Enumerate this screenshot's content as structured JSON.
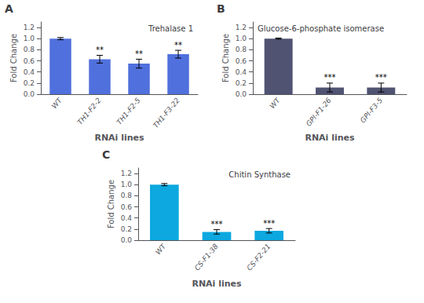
{
  "chart_data": [
    {
      "type": "bar",
      "panel_label": "A",
      "title": "Trehalase 1",
      "categories": [
        "WT",
        "TH1-F2-2",
        "TH1-F2-5",
        "TH1-F3-22"
      ],
      "values": [
        1.0,
        0.63,
        0.55,
        0.72
      ],
      "errors": [
        0.02,
        0.07,
        0.08,
        0.07
      ],
      "annotations": [
        null,
        "**",
        "**",
        "**"
      ],
      "ylabel": "Fold Change",
      "xlabel": "RNAi lines",
      "ylim": [
        0,
        1.3
      ],
      "yticks": [
        {
          "value": 0.0,
          "label": "0.0"
        },
        0.2,
        0.4,
        0.6,
        0.8,
        {
          "value": 1.0,
          "label": "1.0"
        },
        1.2
      ],
      "grid": false
    },
    {
      "type": "bar",
      "panel_label": "B",
      "title": "Glucose-6-phosphate isomerase",
      "categories": [
        "WT",
        "GPI-F1-26",
        "GPI-F3-5"
      ],
      "values": [
        1.0,
        0.12,
        0.12
      ],
      "errors": [
        0.01,
        0.08,
        0.08
      ],
      "annotations": [
        null,
        "***",
        "***"
      ],
      "ylabel": "Fold Change",
      "xlabel": "RNAi lines",
      "ylim": [
        0,
        1.3
      ],
      "yticks": [
        {
          "value": 0.0,
          "label": "0.0"
        },
        0.2,
        0.4,
        0.6,
        0.8,
        {
          "value": 1.0,
          "label": "1.0"
        },
        1.2
      ],
      "grid": false
    },
    {
      "type": "bar",
      "panel_label": "C",
      "title": "Chitin Synthase",
      "categories": [
        "WT",
        "CS-F1-38",
        "CS-F2-21"
      ],
      "values": [
        1.0,
        0.15,
        0.17
      ],
      "errors": [
        0.02,
        0.04,
        0.04
      ],
      "annotations": [
        null,
        "***",
        "***"
      ],
      "ylabel": "Fold Change",
      "xlabel": "RNAi lines",
      "ylim": [
        0,
        1.3
      ],
      "yticks": [
        {
          "value": 0.0,
          "label": "0.0"
        },
        0.2,
        0.4,
        0.6,
        0.8,
        {
          "value": 1.0,
          "label": "1.0"
        },
        1.2
      ],
      "grid": false
    }
  ]
}
